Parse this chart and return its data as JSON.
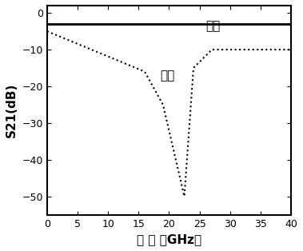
{
  "title": "",
  "xlabel": "频 率 （GHz）",
  "ylabel": "S21(dB)",
  "xlim": [
    0,
    40
  ],
  "ylim": [
    -55,
    2
  ],
  "yticks": [
    0,
    -10,
    -20,
    -30,
    -40,
    -50
  ],
  "xticks": [
    0,
    5,
    10,
    15,
    20,
    25,
    30,
    35,
    40
  ],
  "tongguan_label": "通光",
  "duanguang_label": "断光",
  "tongguan_y": -3.0,
  "duanguang_notch_x": 22.5,
  "duanguang_notch_y": -50,
  "background_color": "#ffffff",
  "line_color": "#000000",
  "solid_linewidth": 2.0,
  "dot_linewidth": 1.5,
  "label_fontsize": 11,
  "tick_fontsize": 9,
  "axis_label_fontsize": 11
}
